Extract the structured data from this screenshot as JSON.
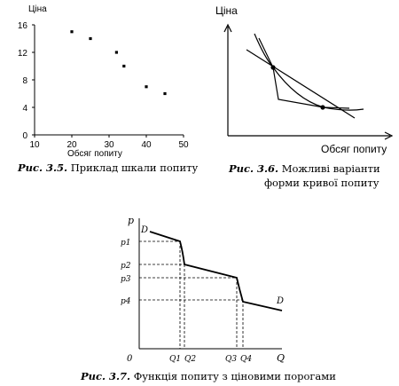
{
  "figure_35": {
    "chart_data": {
      "type": "scatter",
      "ylabel": "Ціна",
      "xlabel": "Обсяг попиту",
      "xlim": [
        10,
        50
      ],
      "ylim": [
        0,
        16
      ],
      "xticks": [
        "10",
        "20",
        "30",
        "40",
        "50"
      ],
      "yticks": [
        "0",
        "4",
        "8",
        "12",
        "16"
      ],
      "points": [
        {
          "x": 20,
          "y": 15
        },
        {
          "x": 25,
          "y": 14
        },
        {
          "x": 32,
          "y": 12
        },
        {
          "x": 34,
          "y": 10
        },
        {
          "x": 40,
          "y": 7
        },
        {
          "x": 45,
          "y": 6
        }
      ]
    },
    "caption_num": "Рис. 3.5.",
    "caption_text": "Приклад шкали попиту"
  },
  "figure_36": {
    "ylabel": "Ціна",
    "xlabel": "Обсяг попиту",
    "caption_num": "Рис. 3.6.",
    "caption_line1": "Можливі варіанти",
    "caption_line2": "форми кривої попиту"
  },
  "figure_37": {
    "ylabel": "p",
    "xlabel": "Q",
    "origin": "0",
    "curve_label_start": "D",
    "curve_label_end": "D",
    "price_labels": [
      "p1",
      "p2",
      "p3",
      "p4"
    ],
    "quantity_labels": [
      "Q1",
      "Q2",
      "Q3",
      "Q4"
    ],
    "caption_num": "Рис. 3.7.",
    "caption_text": "Функція попиту з ціновими порогами"
  }
}
